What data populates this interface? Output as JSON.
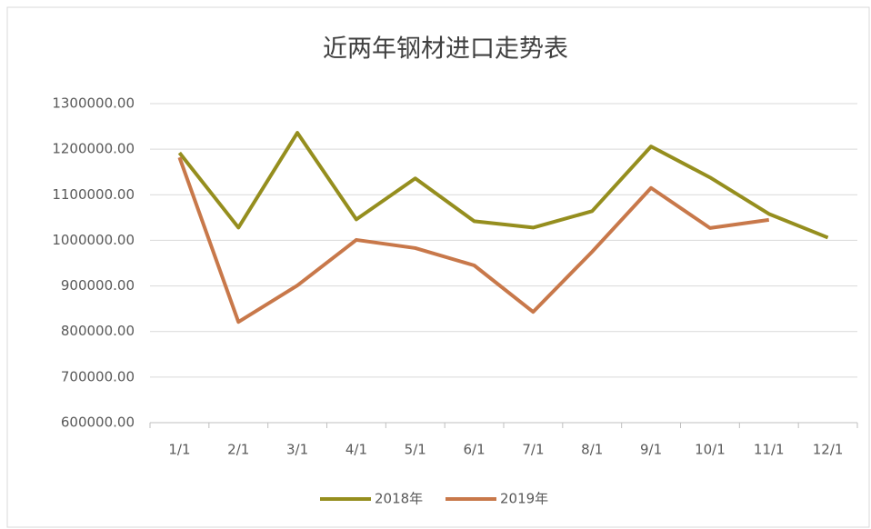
{
  "chart_data": {
    "type": "line",
    "title": "近两年钢材进口走势表",
    "categories": [
      "1/1",
      "2/1",
      "3/1",
      "4/1",
      "5/1",
      "6/1",
      "7/1",
      "8/1",
      "9/1",
      "10/1",
      "11/1",
      "12/1"
    ],
    "series": [
      {
        "name": "2018年",
        "color": "#958e1e",
        "values": [
          1192000,
          1028000,
          1236000,
          1046000,
          1136000,
          1042000,
          1028000,
          1064000,
          1206000,
          1138000,
          1058000,
          1006000
        ]
      },
      {
        "name": "2019年",
        "color": "#c8784a",
        "values": [
          1182000,
          821000,
          901000,
          1001000,
          983000,
          945000,
          843000,
          975000,
          1115000,
          1027000,
          1045000,
          null
        ]
      }
    ],
    "ylim": [
      600000,
      1300000
    ],
    "yticks": [
      {
        "value": 600000,
        "label": "600000.00"
      },
      {
        "value": 700000,
        "label": "700000.00"
      },
      {
        "value": 800000,
        "label": "800000.00"
      },
      {
        "value": 900000,
        "label": "900000.00"
      },
      {
        "value": 1000000,
        "label": "1000000.00"
      },
      {
        "value": 1100000,
        "label": "1100000.00"
      },
      {
        "value": 1200000,
        "label": "1200000.00"
      },
      {
        "value": 1300000,
        "label": "1300000.00"
      }
    ],
    "grid": true,
    "legend": "bottom"
  }
}
